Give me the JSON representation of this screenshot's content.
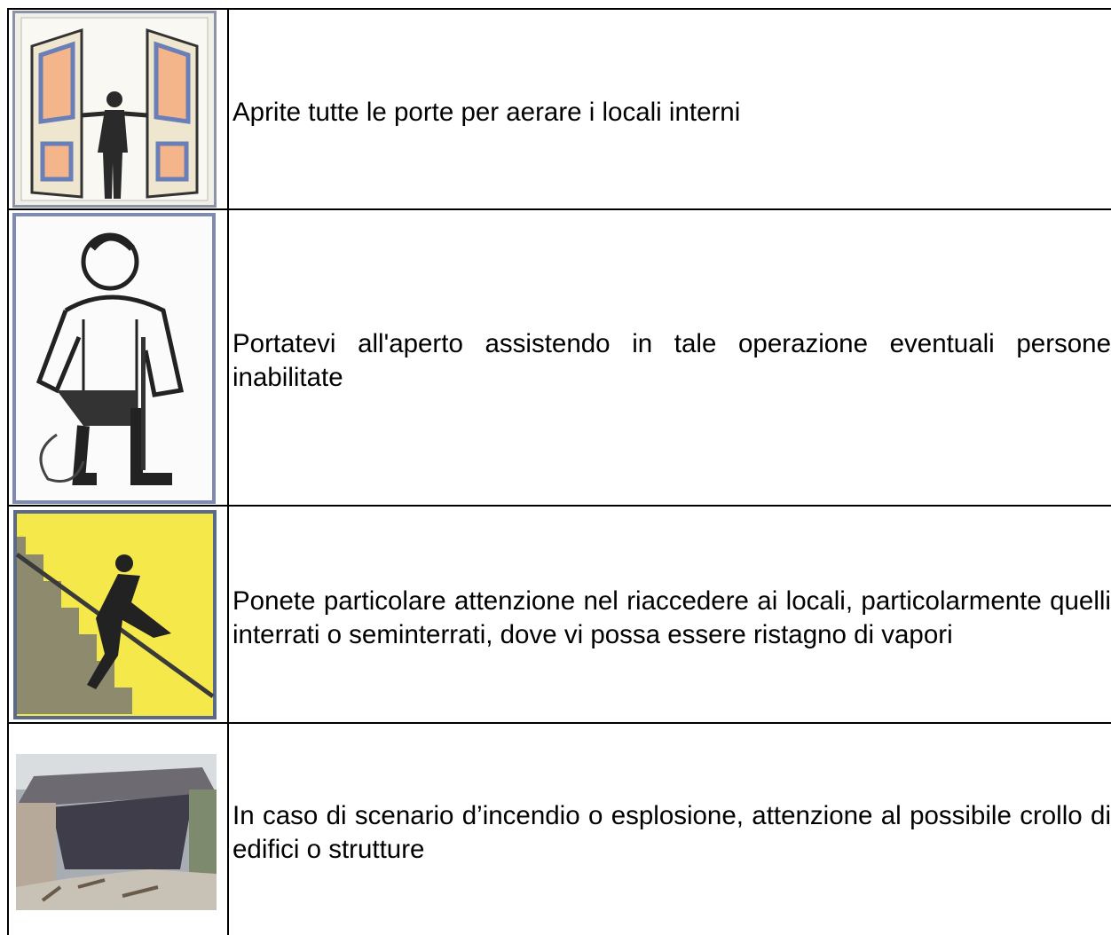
{
  "table": {
    "rows": [
      {
        "text": "Aprite tutte le porte per aerare i locali interni"
      },
      {
        "text": "Portatevi all'aperto assistendo in tale operazione eventuali persone inabilitate"
      },
      {
        "text": "Ponete particolare attenzione nel riaccedere ai locali, particolarmente quelli interrati o seminterrati, dove vi possa essere ristagno di vapori"
      },
      {
        "text": "In caso di scenario d’incendio o esplosione, attenzione al possibile crollo di edifici o strutture"
      }
    ]
  }
}
